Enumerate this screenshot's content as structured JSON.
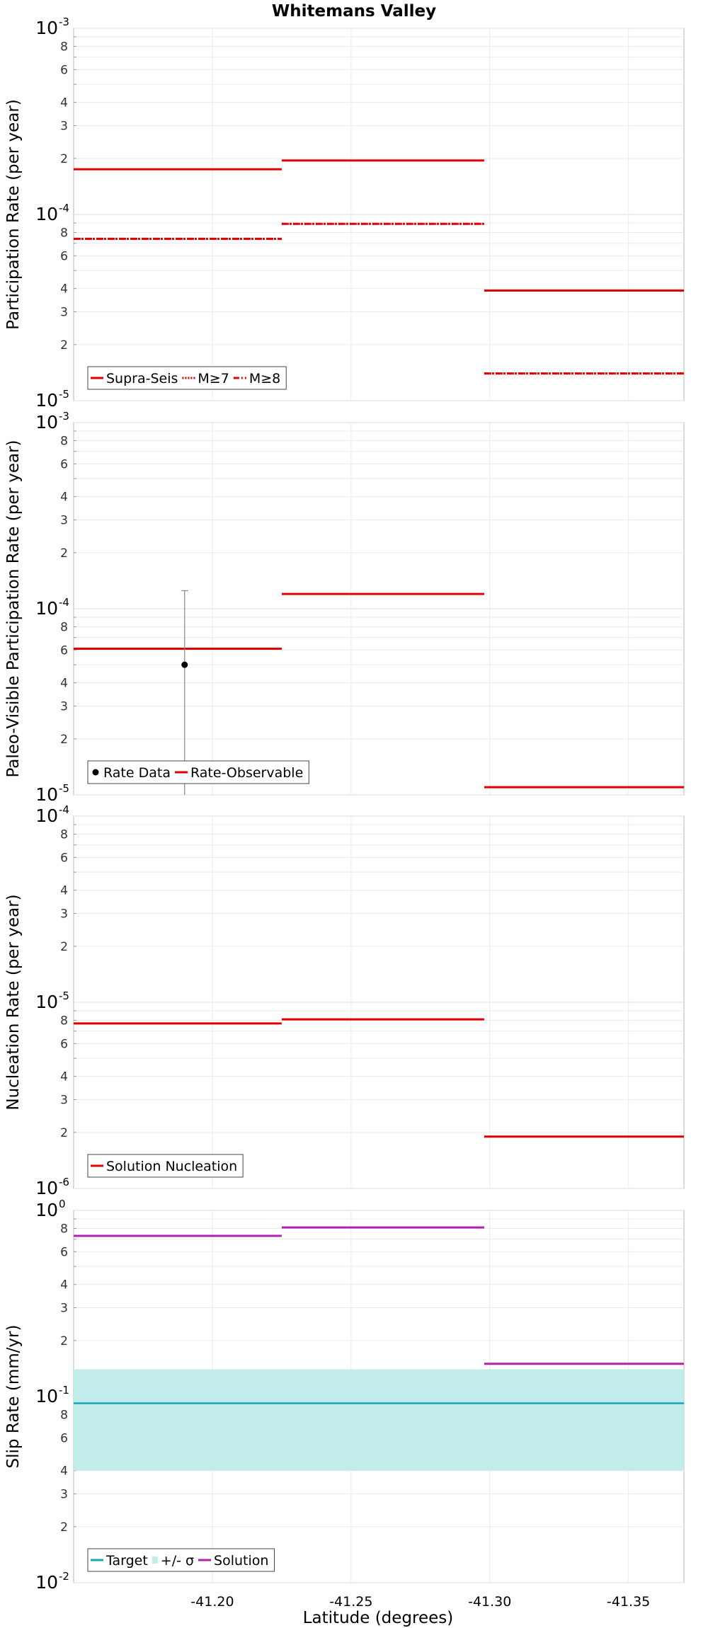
{
  "chart_data": {
    "title": "Whitemans Valley",
    "xlabel": "Latitude (degrees)",
    "xlim": [
      -41.15,
      -41.37
    ],
    "xticks": [
      {
        "value": -41.2,
        "label": "-41.20"
      },
      {
        "value": -41.25,
        "label": "-41.25"
      },
      {
        "value": -41.3,
        "label": "-41.30"
      },
      {
        "value": -41.35,
        "label": "-41.35"
      }
    ],
    "segment_edges": [
      -41.15,
      -41.225,
      -41.298,
      -41.37
    ],
    "panels": [
      {
        "id": "participation",
        "type": "line",
        "ylabel": "Participation Rate (per year)",
        "yscale": "log",
        "ylim_exp": [
          -5,
          -3
        ],
        "series": [
          {
            "name": "Supra-Seis",
            "style": "solid",
            "color": "#e00000",
            "values": [
              0.000175,
              0.000195,
              3.9e-05
            ]
          },
          {
            "name": "M≥7",
            "style": "dotted",
            "color": "#e00000",
            "values": [
              7.4e-05,
              8.9e-05,
              1.4e-05
            ]
          },
          {
            "name": "M≥8",
            "style": "dashdot",
            "color": "#e00000",
            "values": [
              7.4e-05,
              8.9e-05,
              1.4e-05
            ]
          }
        ]
      },
      {
        "id": "paleo",
        "type": "line",
        "ylabel": "Paleo-Visible Participation Rate (per year)",
        "yscale": "log",
        "ylim_exp": [
          -5,
          -3
        ],
        "points": [
          {
            "name": "Rate Data",
            "x": -41.19,
            "y": 5e-05,
            "err_low": 1e-05,
            "err_high": 0.000125,
            "color": "#000000"
          }
        ],
        "series": [
          {
            "name": "Rate-Observable",
            "style": "solid",
            "color": "#e00000",
            "values": [
              6.1e-05,
              0.00012,
              1.1e-05
            ]
          }
        ]
      },
      {
        "id": "nucleation",
        "type": "line",
        "ylabel": "Nucleation Rate (per year)",
        "yscale": "log",
        "ylim_exp": [
          -6,
          -4
        ],
        "series": [
          {
            "name": "Solution Nucleation",
            "style": "solid",
            "color": "#e00000",
            "values": [
              7.7e-06,
              8.1e-06,
              1.9e-06
            ]
          }
        ]
      },
      {
        "id": "slip",
        "type": "line",
        "ylabel": "Slip Rate (mm/yr)",
        "yscale": "log",
        "ylim_exp": [
          -2,
          0
        ],
        "band": {
          "name": "+/- σ",
          "low": 0.04,
          "high": 0.14,
          "color": "#c2ecea"
        },
        "target": {
          "name": "Target",
          "value": 0.092,
          "color": "#1aa7b5"
        },
        "series": [
          {
            "name": "Solution",
            "style": "solid",
            "color": "#b320b3",
            "values": [
              0.73,
              0.81,
              0.15
            ]
          }
        ]
      }
    ]
  }
}
